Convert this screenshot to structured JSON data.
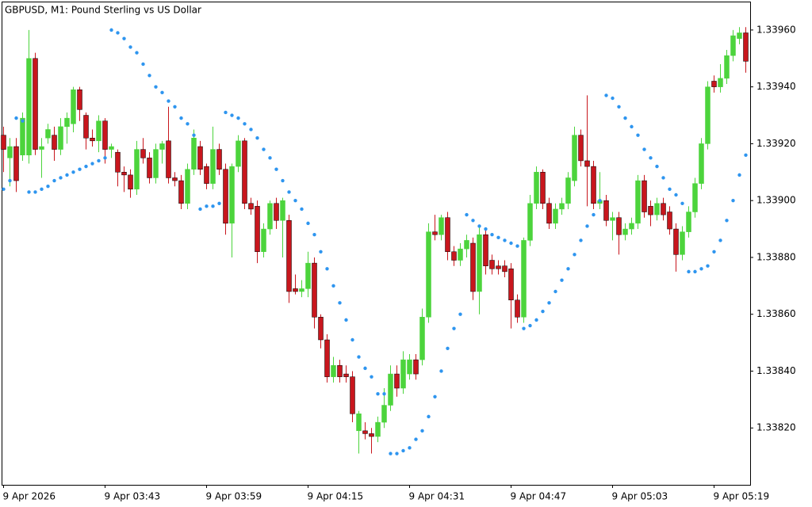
{
  "chart_data": {
    "type": "candlestick",
    "title": "GBPUSD, M1:  Pound Sterling vs US Dollar",
    "categories": [
      "9 Apr 2026",
      null,
      null,
      null,
      null,
      null,
      null,
      null,
      null,
      null,
      null,
      null,
      null,
      null,
      null,
      null,
      "9 Apr 03:43",
      null,
      null,
      null,
      null,
      null,
      null,
      null,
      null,
      null,
      null,
      null,
      null,
      null,
      null,
      null,
      "9 Apr 03:59",
      null,
      null,
      null,
      null,
      null,
      null,
      null,
      null,
      null,
      null,
      null,
      null,
      null,
      null,
      null,
      "9 Apr 04:15",
      null,
      null,
      null,
      null,
      null,
      null,
      null,
      null,
      null,
      null,
      null,
      null,
      null,
      null,
      null,
      "9 Apr 04:31",
      null,
      null,
      null,
      null,
      null,
      null,
      null,
      null,
      null,
      null,
      null,
      null,
      null,
      null,
      null,
      "9 Apr 04:47",
      null,
      null,
      null,
      null,
      null,
      null,
      null,
      null,
      null,
      null,
      null,
      null,
      null,
      null,
      null,
      "9 Apr 05:03",
      null,
      null,
      null,
      null,
      null,
      null,
      null,
      null,
      null,
      null,
      null,
      null,
      null,
      null,
      null,
      "9 Apr 05:19",
      null,
      null,
      null,
      null,
      null
    ],
    "open": [
      1.33923,
      1.33915,
      1.33919,
      1.33916,
      1.33916,
      1.3395,
      1.33918,
      1.33922,
      1.33923,
      1.33918,
      1.33926,
      1.33927,
      1.33939,
      1.3393,
      1.33922,
      1.33921,
      1.33928,
      1.33918,
      1.33917,
      1.3391,
      1.33909,
      1.33904,
      1.33918,
      1.33915,
      1.33908,
      1.33918,
      1.33921,
      1.33908,
      1.33907,
      1.33899,
      1.33911,
      1.33919,
      1.33912,
      1.33906,
      1.33918,
      1.33911,
      1.33892,
      1.33912,
      1.33921,
      1.33899,
      1.33898,
      1.33882,
      1.3389,
      1.33899,
      1.33893,
      1.33893,
      1.33869,
      1.33868,
      1.33869,
      1.33878,
      1.33859,
      1.33851,
      1.33838,
      1.33842,
      1.33839,
      1.33838,
      1.33819,
      1.33819,
      1.33818,
      1.33817,
      1.33822,
      1.33828,
      1.33839,
      1.33834,
      1.33839,
      1.33844,
      1.33844,
      1.33859,
      1.33889,
      1.33888,
      1.33894,
      1.33882,
      1.33879,
      1.33883,
      1.33885,
      1.33868,
      1.33888,
      1.33879,
      1.33877,
      1.33877,
      1.33876,
      1.33865,
      1.33859,
      1.33886,
      1.33899,
      1.3391,
      1.33899,
      1.33892,
      1.33897,
      1.33899,
      1.33907,
      1.33923,
      1.33914,
      1.33912,
      1.33899,
      1.339,
      1.33893,
      1.33894,
      1.33888,
      1.3389,
      1.33892,
      1.33907,
      1.33898,
      1.33895,
      1.33899,
      1.33896,
      1.3389,
      1.33881,
      1.33889,
      1.33896,
      1.33906,
      1.3392,
      1.33942,
      1.3394,
      1.33943,
      1.33951,
      1.33957,
      1.33959
    ],
    "high": [
      1.33926,
      1.33922,
      1.33922,
      1.33931,
      1.3396,
      1.33952,
      1.33922,
      1.33927,
      1.33926,
      1.33929,
      1.33931,
      1.3394,
      1.3394,
      1.33931,
      1.33925,
      1.3393,
      1.33929,
      1.3392,
      1.33918,
      1.33912,
      1.33911,
      1.33921,
      1.33922,
      1.33917,
      1.3392,
      1.33921,
      1.33933,
      1.3391,
      1.33909,
      1.33913,
      1.33925,
      1.33921,
      1.33913,
      1.33926,
      1.3392,
      1.33913,
      1.33913,
      1.33923,
      1.33922,
      1.33901,
      1.339,
      1.33892,
      1.339,
      1.33901,
      1.33901,
      1.33895,
      1.33874,
      1.33872,
      1.33882,
      1.3388,
      1.3386,
      1.33853,
      1.33845,
      1.33844,
      1.33842,
      1.3384,
      1.33826,
      1.33822,
      1.3382,
      1.33824,
      1.33834,
      1.33842,
      1.33842,
      1.33847,
      1.33846,
      1.33846,
      1.33862,
      1.33892,
      1.33895,
      1.33895,
      1.33896,
      1.33884,
      1.33885,
      1.33888,
      1.33887,
      1.33891,
      1.3389,
      1.33881,
      1.33879,
      1.33879,
      1.33878,
      1.33867,
      1.33887,
      1.33902,
      1.33912,
      1.33911,
      1.33901,
      1.33899,
      1.33901,
      1.3391,
      1.33926,
      1.33925,
      1.33937,
      1.33914,
      1.3391,
      1.33902,
      1.33896,
      1.33896,
      1.33892,
      1.33894,
      1.33909,
      1.33909,
      1.339,
      1.33901,
      1.33901,
      1.33898,
      1.33892,
      1.33891,
      1.33898,
      1.33908,
      1.33922,
      1.33942,
      1.33944,
      1.33948,
      1.33953,
      1.3396,
      1.33961,
      1.33961
    ],
    "low": [
      1.3391,
      1.33905,
      1.33903,
      1.33914,
      1.33913,
      1.33916,
      1.33908,
      1.3392,
      1.33914,
      1.33916,
      1.3392,
      1.33924,
      1.33928,
      1.33918,
      1.33919,
      1.33917,
      1.33913,
      1.33915,
      1.33905,
      1.33903,
      1.33901,
      1.33902,
      1.33913,
      1.33906,
      1.33906,
      1.33913,
      1.33906,
      1.33905,
      1.33897,
      1.33897,
      1.33909,
      1.33909,
      1.33904,
      1.33904,
      1.33909,
      1.33888,
      1.3388,
      1.3391,
      1.33897,
      1.33895,
      1.33878,
      1.3388,
      1.33888,
      1.3389,
      1.3388,
      1.33864,
      1.33867,
      1.33866,
      1.33866,
      1.33855,
      1.33848,
      1.33836,
      1.33836,
      1.33836,
      1.33836,
      1.33822,
      1.33811,
      1.33816,
      1.33811,
      1.33815,
      1.3382,
      1.33826,
      1.33831,
      1.33832,
      1.33837,
      1.33837,
      1.33842,
      1.33857,
      1.33886,
      1.33886,
      1.33879,
      1.33877,
      1.33877,
      1.3388,
      1.33865,
      1.3386,
      1.33874,
      1.33874,
      1.33874,
      1.33873,
      1.33855,
      1.33857,
      1.33857,
      1.33884,
      1.33897,
      1.33897,
      1.3389,
      1.3389,
      1.33895,
      1.33897,
      1.33905,
      1.33912,
      1.33898,
      1.33897,
      1.33897,
      1.33891,
      1.33886,
      1.33881,
      1.33886,
      1.33888,
      1.3389,
      1.33894,
      1.33891,
      1.33893,
      1.33893,
      1.33888,
      1.33875,
      1.33879,
      1.33887,
      1.33894,
      1.33904,
      1.33918,
      1.33938,
      1.33938,
      1.33941,
      1.33949,
      1.33955,
      1.33945
    ],
    "close": [
      1.33918,
      1.33919,
      1.33907,
      1.33929,
      1.3395,
      1.33918,
      1.33919,
      1.33925,
      1.33918,
      1.33926,
      1.33929,
      1.33939,
      1.33932,
      1.33922,
      1.33921,
      1.33928,
      1.33918,
      1.33919,
      1.3391,
      1.33909,
      1.33904,
      1.33918,
      1.33915,
      1.33908,
      1.33918,
      1.3392,
      1.33908,
      1.33907,
      1.33899,
      1.33911,
      1.33922,
      1.33911,
      1.33906,
      1.33918,
      1.33911,
      1.33892,
      1.33912,
      1.33921,
      1.33899,
      1.33897,
      1.33882,
      1.3389,
      1.33899,
      1.33893,
      1.339,
      1.33868,
      1.33868,
      1.33869,
      1.33878,
      1.33859,
      1.33851,
      1.33838,
      1.33842,
      1.33838,
      1.33838,
      1.33825,
      1.33825,
      1.33818,
      1.33817,
      1.33822,
      1.33828,
      1.33839,
      1.33834,
      1.33844,
      1.33844,
      1.33839,
      1.33859,
      1.33889,
      1.33888,
      1.33894,
      1.33882,
      1.33879,
      1.33883,
      1.33886,
      1.33868,
      1.33888,
      1.33877,
      1.33876,
      1.33876,
      1.33875,
      1.33865,
      1.33859,
      1.33886,
      1.33899,
      1.3391,
      1.33899,
      1.33892,
      1.33897,
      1.33899,
      1.33908,
      1.33923,
      1.33914,
      1.33912,
      1.33899,
      1.339,
      1.33893,
      1.33894,
      1.33888,
      1.3389,
      1.33892,
      1.33907,
      1.33896,
      1.33895,
      1.33899,
      1.33895,
      1.3389,
      1.33881,
      1.33889,
      1.33896,
      1.33906,
      1.3392,
      1.3394,
      1.3394,
      1.33943,
      1.33951,
      1.33958,
      1.33959,
      1.33949
    ],
    "sar_values": [
      1.33904,
      1.33907,
      1.33929,
      1.33928,
      1.33903,
      1.33903,
      1.33904,
      1.33905,
      1.33907,
      1.33908,
      1.33909,
      1.3391,
      1.33911,
      1.33912,
      1.33913,
      1.33914,
      1.33915,
      1.3396,
      1.33959,
      1.33957,
      1.33954,
      1.33952,
      1.33948,
      1.33944,
      1.3394,
      1.33938,
      1.33935,
      1.33933,
      1.33929,
      1.33927,
      1.33923,
      1.33897,
      1.33898,
      1.33898,
      1.33899,
      1.33931,
      1.3393,
      1.33929,
      1.33927,
      1.33925,
      1.33922,
      1.33918,
      1.33915,
      1.33911,
      1.33907,
      1.33903,
      1.339,
      1.33897,
      1.33892,
      1.33888,
      1.33882,
      1.33876,
      1.3387,
      1.33864,
      1.33858,
      1.33851,
      1.33845,
      1.33841,
      1.33838,
      1.33832,
      1.33832,
      1.33811,
      1.33811,
      1.33812,
      1.33813,
      1.33816,
      1.33819,
      1.33824,
      1.33831,
      1.3384,
      1.33848,
      1.33855,
      1.3386,
      1.33895,
      1.33893,
      1.33891,
      1.3389,
      1.33888,
      1.33887,
      1.33886,
      1.33885,
      1.33884,
      1.33855,
      1.33856,
      1.33858,
      1.33861,
      1.33864,
      1.33868,
      1.33872,
      1.33876,
      1.33881,
      1.33886,
      1.33891,
      1.33895,
      1.339,
      1.33937,
      1.33936,
      1.33933,
      1.33929,
      1.33926,
      1.33923,
      1.33918,
      1.33915,
      1.33912,
      1.33908,
      1.33904,
      1.33902,
      1.33899,
      1.33875,
      1.33875,
      1.33876,
      1.33877,
      1.33882,
      1.33886,
      1.33893,
      1.339,
      1.33909,
      1.33916
    ],
    "up_color": "#4cd43c",
    "down_color": "#c8161d",
    "sar_color": "#2e95ef",
    "ylim": [
      1.338,
      1.3397
    ],
    "yticks": [
      {
        "value": 1.3382,
        "label": "1.33820"
      },
      {
        "value": 1.3384,
        "label": "1.33840"
      },
      {
        "value": 1.3386,
        "label": "1.33860"
      },
      {
        "value": 1.3388,
        "label": "1.33880"
      },
      {
        "value": 1.339,
        "label": "1.33900"
      },
      {
        "value": 1.3392,
        "label": "1.33920"
      },
      {
        "value": 1.3394,
        "label": "1.33940"
      },
      {
        "value": 1.3396,
        "label": "1.33960"
      }
    ],
    "grid": false
  }
}
